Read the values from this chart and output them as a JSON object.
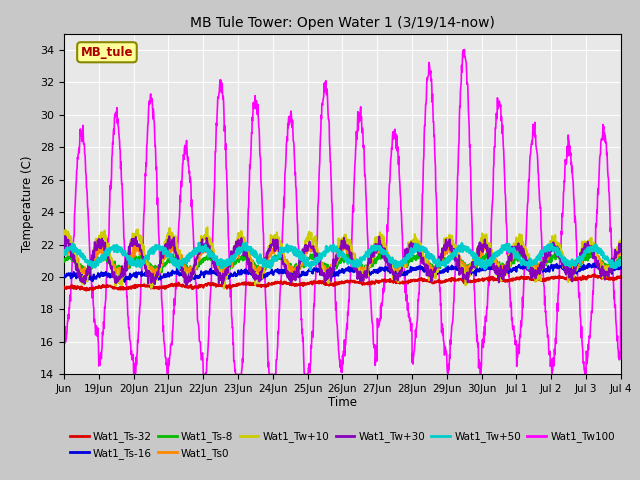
{
  "title": "MB Tule Tower: Open Water 1 (3/19/14-now)",
  "xlabel": "Time",
  "ylabel": "Temperature (C)",
  "ylim": [
    14,
    35
  ],
  "yticks": [
    14,
    16,
    18,
    20,
    22,
    24,
    26,
    28,
    30,
    32,
    34
  ],
  "bg_color": "#e8e8e8",
  "fig_bg_color": "#c8c8c8",
  "series": [
    {
      "label": "Wat1_Ts-32",
      "color": "#dd0000",
      "lw": 1.5,
      "zorder": 3
    },
    {
      "label": "Wat1_Ts-16",
      "color": "#0000dd",
      "lw": 1.5,
      "zorder": 3
    },
    {
      "label": "Wat1_Ts-8",
      "color": "#00bb00",
      "lw": 1.5,
      "zorder": 3
    },
    {
      "label": "Wat1_Ts0",
      "color": "#ff8800",
      "lw": 1.5,
      "zorder": 3
    },
    {
      "label": "Wat1_Tw+10",
      "color": "#cccc00",
      "lw": 1.5,
      "zorder": 3
    },
    {
      "label": "Wat1_Tw+30",
      "color": "#8800bb",
      "lw": 1.5,
      "zorder": 3
    },
    {
      "label": "Wat1_Tw+50",
      "color": "#00cccc",
      "lw": 2.0,
      "zorder": 3
    },
    {
      "label": "Wat1_Tw100",
      "color": "#ff00ff",
      "lw": 1.2,
      "zorder": 2
    }
  ],
  "tick_labels": [
    "Jun",
    "19Jun",
    "20Jun",
    "21Jun",
    "22Jun",
    "23Jun",
    "24Jun",
    "25Jun",
    "26Jun",
    "27Jun",
    "28Jun",
    "29Jun",
    "30Jun",
    "Jul 1",
    "Jul 2",
    "Jul 3",
    "Jul 4"
  ],
  "tick_positions": [
    0,
    1,
    2,
    3,
    4,
    5,
    6,
    7,
    8,
    9,
    10,
    11,
    12,
    13,
    14,
    15,
    16
  ]
}
